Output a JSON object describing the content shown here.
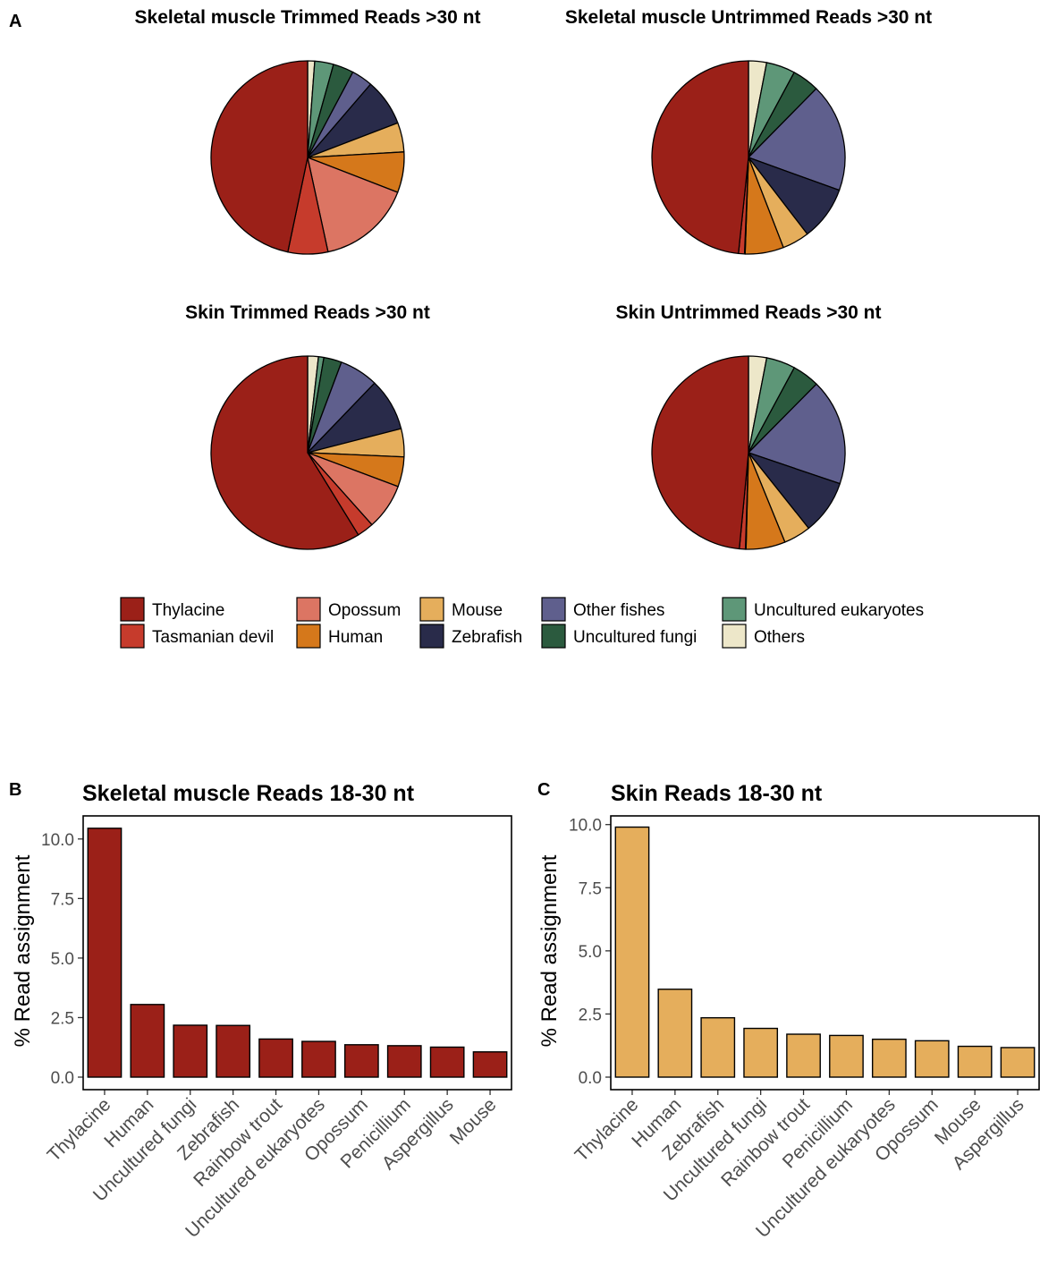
{
  "panels": {
    "a": "A",
    "b": "B",
    "c": "C"
  },
  "categories": [
    {
      "name": "Thylacine",
      "color": "#9b2018"
    },
    {
      "name": "Tasmanian devil",
      "color": "#c63b2c"
    },
    {
      "name": "Opossum",
      "color": "#dc7563"
    },
    {
      "name": "Human",
      "color": "#d5781b"
    },
    {
      "name": "Mouse",
      "color": "#e5ae5c"
    },
    {
      "name": "Zebrafish",
      "color": "#292b4a"
    },
    {
      "name": "Other fishes",
      "color": "#5f5f8d"
    },
    {
      "name": "Uncultured fungi",
      "color": "#2b5a3e"
    },
    {
      "name": "Uncultured eukaryotes",
      "color": "#5e9778"
    },
    {
      "name": "Others",
      "color": "#ede7c9"
    }
  ],
  "chart_data": [
    {
      "type": "pie",
      "title": "Skeletal muscle Trimmed Reads >30 nt",
      "labels": [
        "Thylacine",
        "Tasmanian devil",
        "Opossum",
        "Human",
        "Mouse",
        "Zebrafish",
        "Other fishes",
        "Uncultured fungi",
        "Uncultured eukaryotes",
        "Others"
      ],
      "values": [
        47.5,
        6.8,
        16.0,
        6.9,
        5.0,
        8.0,
        3.6,
        3.5,
        3.2,
        1.2
      ]
    },
    {
      "type": "pie",
      "title": "Skeletal muscle Untrimmed Reads >30 nt",
      "labels": [
        "Thylacine",
        "Tasmanian devil",
        "Opossum",
        "Human",
        "Mouse",
        "Zebrafish",
        "Other fishes",
        "Uncultured fungi",
        "Uncultured eukaryotes",
        "Others"
      ],
      "values": [
        48.0,
        1.0,
        0.1,
        6.4,
        4.5,
        9.0,
        18.0,
        4.5,
        4.8,
        3.0
      ]
    },
    {
      "type": "pie",
      "title": "Skin Trimmed Reads >30 nt",
      "labels": [
        "Thylacine",
        "Tasmanian devil",
        "Opossum",
        "Human",
        "Mouse",
        "Zebrafish",
        "Other fishes",
        "Uncultured fungi",
        "Uncultured eukaryotes",
        "Others"
      ],
      "values": [
        58.8,
        2.8,
        7.7,
        5.0,
        4.7,
        8.8,
        6.5,
        3.0,
        0.9,
        1.8
      ]
    },
    {
      "type": "pie",
      "title": "Skin Untrimmed Reads >30 nt",
      "labels": [
        "Thylacine",
        "Tasmanian devil",
        "Opossum",
        "Human",
        "Mouse",
        "Zebrafish",
        "Other fishes",
        "Uncultured fungi",
        "Uncultured eukaryotes",
        "Others"
      ],
      "values": [
        48.0,
        1.0,
        0.1,
        6.5,
        4.5,
        9.0,
        17.6,
        4.5,
        4.8,
        3.0
      ]
    },
    {
      "type": "bar",
      "title": "Skeletal muscle Reads 18-30 nt",
      "ylabel": "% Read assignment",
      "ylim": [
        0,
        10.95
      ],
      "yticks": [
        "0.0",
        "2.5",
        "5.0",
        "7.5",
        "10.0"
      ],
      "color": "#9b2018",
      "categories": [
        "Thylacine",
        "Human",
        "Uncultured fungi",
        "Zebrafish",
        "Rainbow trout",
        "Uncultured eukaryotes",
        "Opossum",
        "Penicillium",
        "Aspergillus",
        "Mouse"
      ],
      "values": [
        10.45,
        3.05,
        2.18,
        2.17,
        1.6,
        1.5,
        1.36,
        1.32,
        1.26,
        1.06
      ]
    },
    {
      "type": "bar",
      "title": "Skin Reads 18-30 nt",
      "ylabel": "% Read assignment",
      "ylim": [
        0,
        10.45
      ],
      "yticks": [
        "0.0",
        "2.5",
        "5.0",
        "7.5",
        "10.0"
      ],
      "color": "#e5ae5c",
      "categories": [
        "Thylacine",
        "Human",
        "Zebrafish",
        "Uncultured fungi",
        "Rainbow trout",
        "Penicillium",
        "Uncultured eukaryotes",
        "Opossum",
        "Mouse",
        "Aspergillus"
      ],
      "values": [
        9.9,
        3.48,
        2.35,
        1.93,
        1.7,
        1.65,
        1.5,
        1.44,
        1.22,
        1.17
      ]
    }
  ]
}
